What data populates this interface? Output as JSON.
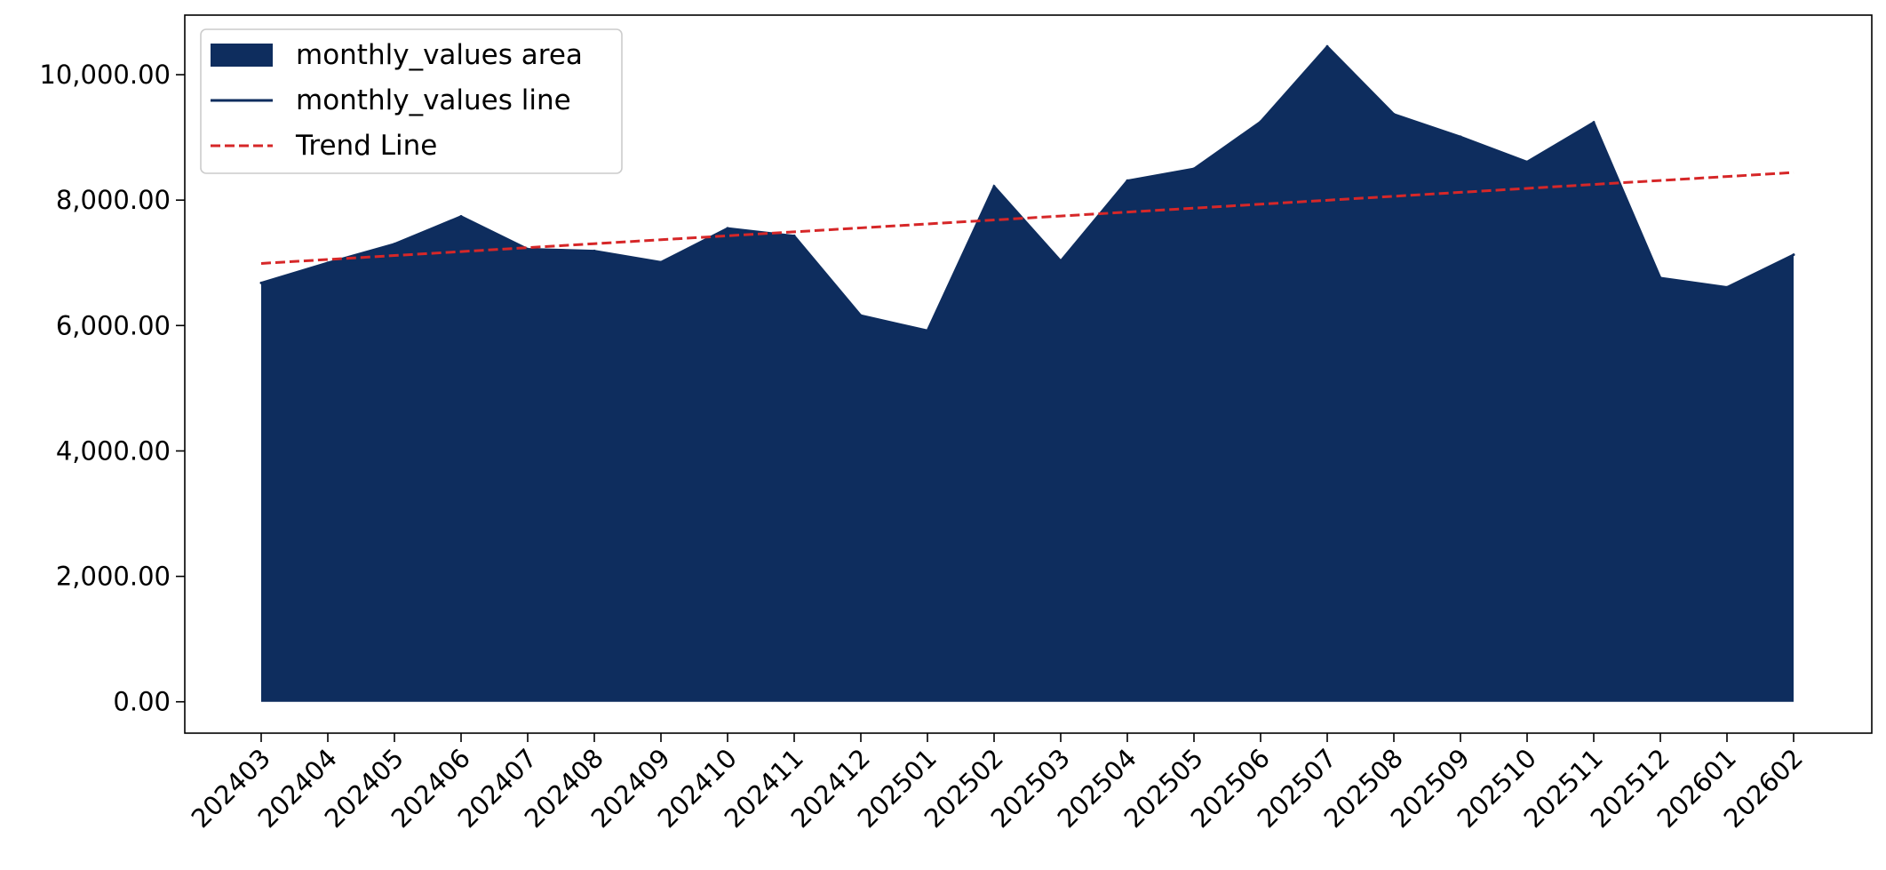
{
  "chart_data": {
    "type": "area",
    "title": "",
    "xlabel": "",
    "ylabel": "",
    "categories": [
      "202403",
      "202404",
      "202405",
      "202406",
      "202407",
      "202408",
      "202409",
      "202410",
      "202411",
      "202412",
      "202501",
      "202502",
      "202503",
      "202504",
      "202505",
      "202506",
      "202507",
      "202508",
      "202509",
      "202510",
      "202511",
      "202512",
      "202601",
      "202602"
    ],
    "series": [
      {
        "name": "monthly_values area",
        "kind": "area",
        "color": "#0e2d5e",
        "values": [
          6680,
          7000,
          7300,
          7740,
          7220,
          7190,
          7010,
          7550,
          7430,
          6160,
          5920,
          8220,
          7030,
          8310,
          8500,
          9250,
          10450,
          9370,
          9010,
          8610,
          9240,
          6760,
          6610,
          7130
        ]
      },
      {
        "name": "monthly_values line",
        "kind": "line",
        "color": "#0e2d5e",
        "values": [
          6680,
          7000,
          7300,
          7740,
          7220,
          7190,
          7010,
          7550,
          7430,
          6160,
          5920,
          8220,
          7030,
          8310,
          8500,
          9250,
          10450,
          9370,
          9010,
          8610,
          9240,
          6760,
          6610,
          7130
        ]
      },
      {
        "name": "Trend Line",
        "kind": "line",
        "style": "dashed",
        "color": "#d62728",
        "values": [
          6990,
          7053,
          7116,
          7179,
          7242,
          7305,
          7368,
          7431,
          7494,
          7557,
          7620,
          7683,
          7746,
          7809,
          7872,
          7935,
          7998,
          8061,
          8124,
          8187,
          8250,
          8313,
          8376,
          8440
        ]
      }
    ],
    "ylim": [
      -500,
      10950
    ],
    "yticks": [
      0,
      2000,
      4000,
      6000,
      8000,
      10000
    ],
    "ytick_labels": [
      "0.00",
      "2,000.00",
      "4,000.00",
      "6,000.00",
      "8,000.00",
      "10,000.00"
    ],
    "grid": false,
    "legend_position": "top-left"
  }
}
